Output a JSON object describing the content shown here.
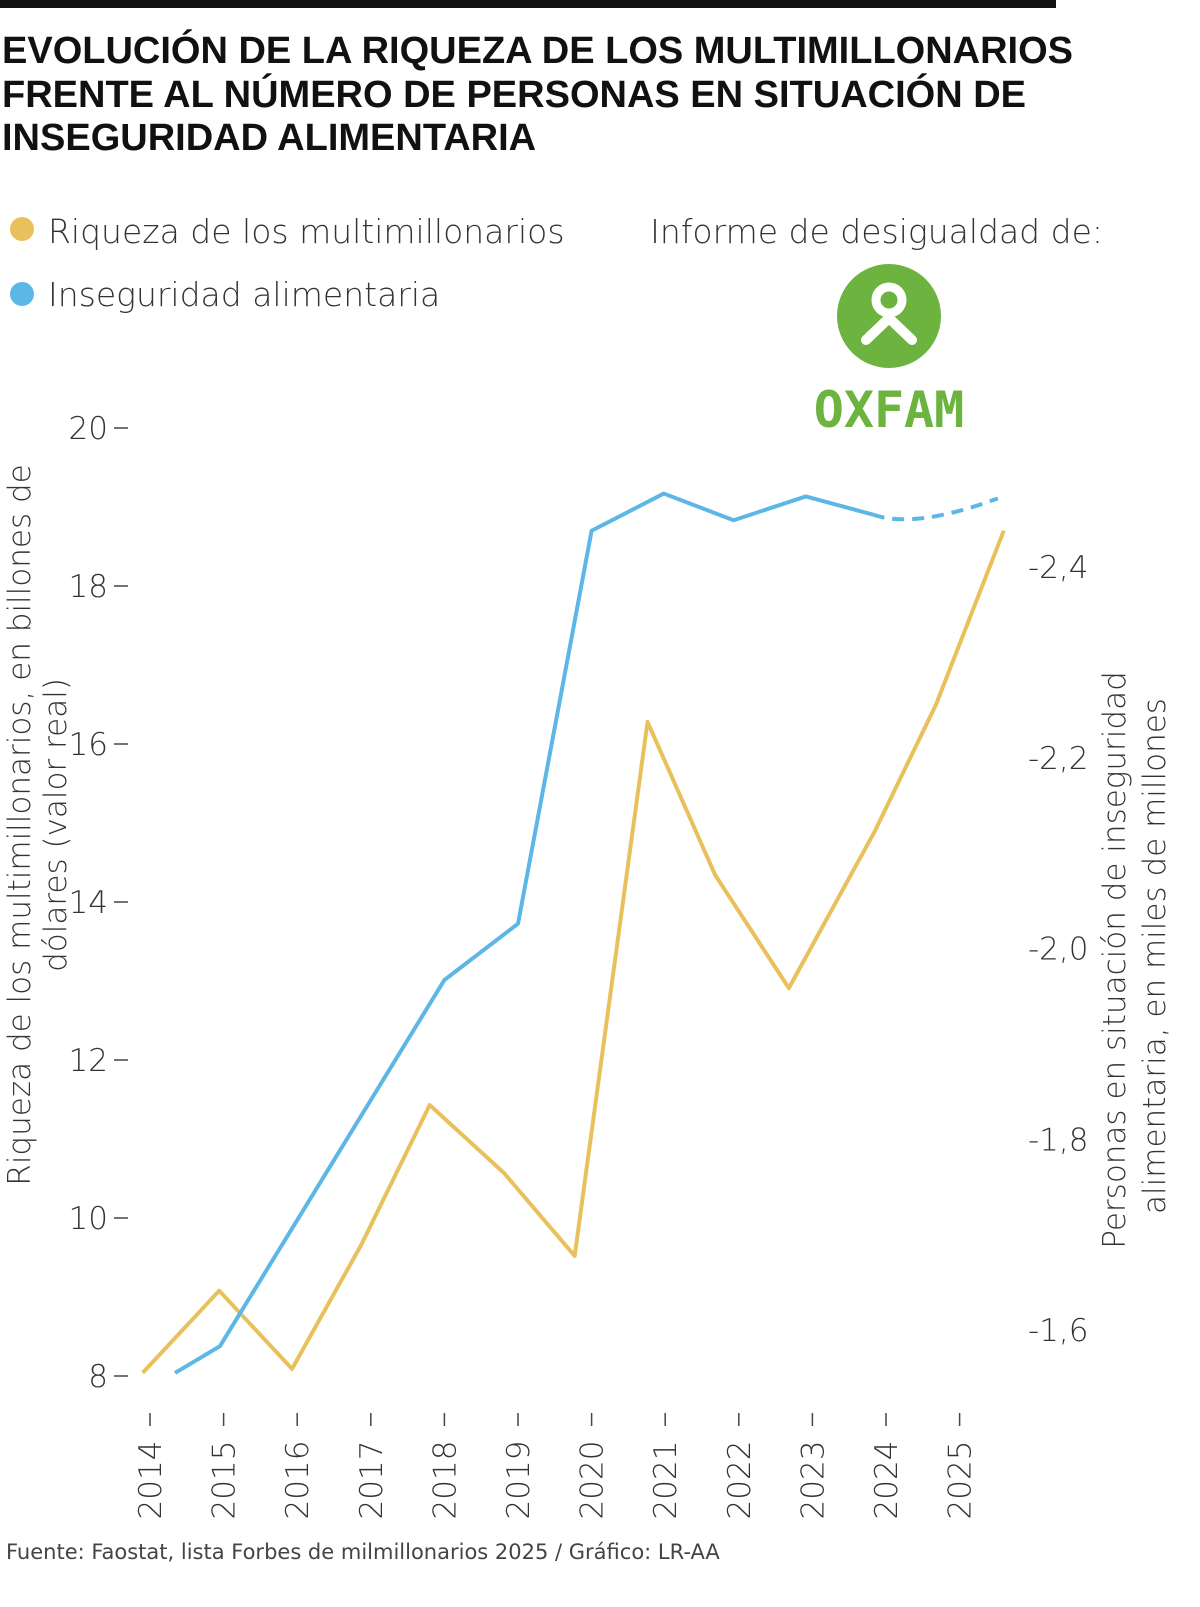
{
  "title_lines": [
    "EVOLUCIÓN DE LA RIQUEZA DE LOS MULTIMILLONARIOS",
    "FRENTE AL NÚMERO DE PERSONAS EN SITUACIÓN DE",
    "INSEGURIDAD ALIMENTARIA"
  ],
  "legend": [
    {
      "label": "Riqueza de los multimillonarios",
      "color": "#E9C15C"
    },
    {
      "label": "Inseguridad alimentaria",
      "color": "#5DB7E6"
    }
  ],
  "report_label": "Informe de desigualdad de:",
  "logo": {
    "text": "OXFAM",
    "color": "#6CB33F"
  },
  "source": "Fuente: Faostat, lista Forbes de milmillonarios 2025 / Gráfico: LR-AA",
  "chart_data": {
    "type": "line",
    "title": "EVOLUCIÓN DE LA RIQUEZA DE LOS MULTIMILLONARIOS FRENTE AL NÚMERO DE PERSONAS EN SITUACIÓN DE INSEGURIDAD ALIMENTARIA",
    "x_ticks": [
      "2014",
      "2015",
      "2016",
      "2017",
      "2018",
      "2019",
      "2020",
      "2021",
      "2022",
      "2023",
      "2024",
      "2025"
    ],
    "y_left": {
      "label_lines": [
        "Riqueza de los multimillonarios, en billones de",
        "dólares (valor real)"
      ],
      "range": [
        8,
        20
      ],
      "ticks": [
        "8",
        "10",
        "12",
        "14",
        "16",
        "18",
        "20"
      ]
    },
    "y_right": {
      "label_lines": [
        "Personas en situación de inseguridad",
        "alimentaria, en miles de millones"
      ],
      "range": [
        -2.4,
        -1.6
      ],
      "ticks": [
        "-2,4",
        "-2,2",
        "-2,0",
        "-1,8",
        "-1,6"
      ],
      "direction": "top -2,4 to bottom -1,6"
    },
    "grid": false,
    "legend_position": "top-left",
    "series": [
      {
        "name": "Riqueza de los multimillonarios",
        "axis": "left",
        "color": "#E9C15C",
        "x": [
          2013.9,
          2014.94,
          2015.93,
          2016.87,
          2017.8,
          2018.81,
          2019.77,
          2020.76,
          2021.68,
          2022.68,
          2023.85,
          2024.68,
          2025.6
        ],
        "y": [
          8.04,
          9.08,
          8.09,
          9.66,
          11.43,
          10.57,
          9.52,
          16.28,
          14.34,
          12.91,
          14.9,
          16.5,
          18.7
        ]
      },
      {
        "name": "Inseguridad alimentaria",
        "axis": "right",
        "color": "#5DB7E6",
        "x": [
          2014.34,
          2014.95,
          2018.0,
          2019.0,
          2020.0,
          2020.98,
          2021.93,
          2022.91,
          2023.82,
          2024.39,
          2025.52
        ],
        "y": [
          -1.555,
          -1.583,
          -1.967,
          -2.026,
          -2.438,
          -2.477,
          -2.449,
          -2.474,
          -2.455,
          -2.45,
          -2.472
        ],
        "dashed_from_x": 2023.82
      }
    ]
  }
}
